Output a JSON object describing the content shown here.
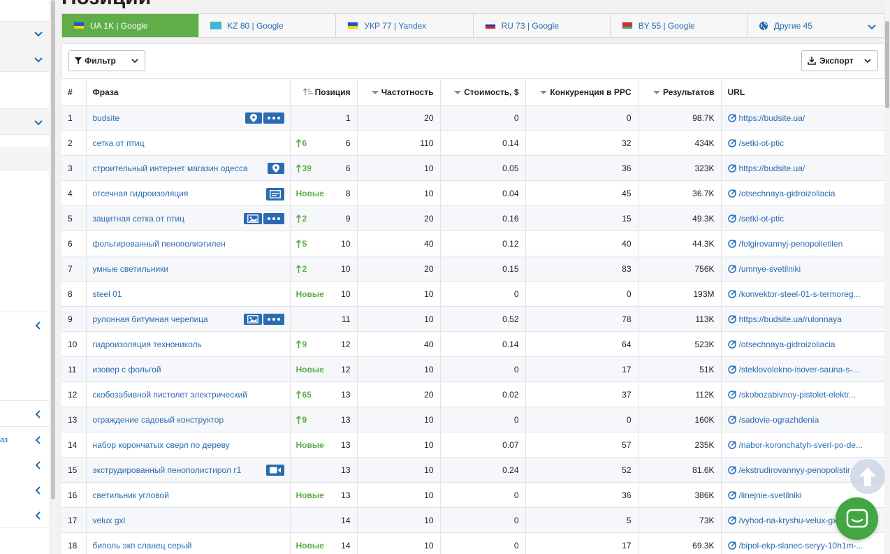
{
  "page": {
    "heading": "Позиции"
  },
  "sidebar": {
    "partial_label": "аз"
  },
  "tabs": [
    {
      "label": "UA 1K | Google",
      "flag": "ua",
      "active": true
    },
    {
      "label": "KZ 80 | Google",
      "flag": "kz",
      "active": false
    },
    {
      "label": "УКР 77 | Yandex",
      "flag": "ua",
      "active": false
    },
    {
      "label": "RU 73 | Google",
      "flag": "ru",
      "active": false
    },
    {
      "label": "BY 55 | Google",
      "flag": "by",
      "active": false
    },
    {
      "label": "Другие 45",
      "flag": "globe-icon",
      "active": false
    }
  ],
  "toolbar": {
    "filter_label": "Фильтр",
    "export_label": "Экспорт"
  },
  "table": {
    "headers": {
      "num": "#",
      "phrase": "Фраза",
      "position": "Позиция",
      "frequency": "Частотность",
      "cost": "Стоимость, $",
      "competition": "Конкуренция в PPC",
      "results": "Результатов",
      "url": "URL"
    },
    "rows": [
      {
        "n": "1",
        "phrase": "budsite",
        "icons": [
          "map-pin-icon",
          "more-icon"
        ],
        "change": "",
        "pos": "1",
        "freq": "20",
        "cost": "0",
        "comp": "0",
        "res": "98.7K",
        "url": "https://budsite.ua/"
      },
      {
        "n": "2",
        "phrase": "сетка от птиц",
        "icons": [],
        "change": "6",
        "pos": "6",
        "freq": "110",
        "cost": "0.14",
        "comp": "32",
        "res": "434K",
        "url": "/setki-ot-ptic"
      },
      {
        "n": "3",
        "phrase": "строительный интернет магазин одесса",
        "icons": [
          "map-pin-icon"
        ],
        "change": "39",
        "pos": "6",
        "freq": "10",
        "cost": "0.05",
        "comp": "36",
        "res": "323K",
        "url": "https://budsite.ua/"
      },
      {
        "n": "4",
        "phrase": "отсечная гидроизоляция",
        "icons": [
          "text-card-icon"
        ],
        "change": "Новые",
        "pos": "8",
        "freq": "10",
        "cost": "0.04",
        "comp": "45",
        "res": "36.7K",
        "url": "/otsechnaya-gidroizoliacia"
      },
      {
        "n": "5",
        "phrase": "защитная сетка от птиц",
        "icons": [
          "image-icon",
          "more-icon"
        ],
        "change": "2",
        "pos": "9",
        "freq": "20",
        "cost": "0.16",
        "comp": "15",
        "res": "49.3K",
        "url": "/setki-ot-ptic"
      },
      {
        "n": "6",
        "phrase": "фольгированный пенополиэтилен",
        "icons": [],
        "change": "5",
        "pos": "10",
        "freq": "40",
        "cost": "0.12",
        "comp": "40",
        "res": "44.3K",
        "url": "/folgirovannyj-penopolietilen"
      },
      {
        "n": "7",
        "phrase": "умные светильники",
        "icons": [],
        "change": "2",
        "pos": "10",
        "freq": "20",
        "cost": "0.15",
        "comp": "83",
        "res": "756K",
        "url": "/umnye-svetilniki"
      },
      {
        "n": "8",
        "phrase": "steel 01",
        "icons": [],
        "change": "Новые",
        "pos": "10",
        "freq": "10",
        "cost": "0",
        "comp": "0",
        "res": "193M",
        "url": "/konvektor-steel-01-s-termoreg..."
      },
      {
        "n": "9",
        "phrase": "рулонная битумная черепица",
        "icons": [
          "image-icon",
          "more-icon"
        ],
        "change": "",
        "pos": "11",
        "freq": "10",
        "cost": "0.52",
        "comp": "78",
        "res": "113K",
        "url": "https://budsite.ua/rulonnaya"
      },
      {
        "n": "10",
        "phrase": "гидроизоляция технониколь",
        "icons": [],
        "change": "9",
        "pos": "12",
        "freq": "40",
        "cost": "0.14",
        "comp": "64",
        "res": "523K",
        "url": "/otsechnaya-gidroizoliacia"
      },
      {
        "n": "11",
        "phrase": "изовер с фольгой",
        "icons": [],
        "change": "Новые",
        "pos": "12",
        "freq": "10",
        "cost": "0",
        "comp": "17",
        "res": "51K",
        "url": "/steklovolokno-isover-sauna-s-..."
      },
      {
        "n": "12",
        "phrase": "скобозабивной пистолет электрический",
        "icons": [],
        "change": "65",
        "pos": "13",
        "freq": "20",
        "cost": "0.02",
        "comp": "37",
        "res": "112K",
        "url": "/skobozabivnoy-pistolet-elektr..."
      },
      {
        "n": "13",
        "phrase": "ограждение садовый конструктор",
        "icons": [],
        "change": "9",
        "pos": "13",
        "freq": "10",
        "cost": "0",
        "comp": "0",
        "res": "160K",
        "url": "/sadovie-ograzhdenia"
      },
      {
        "n": "14",
        "phrase": "набор корончатых сверл по дереву",
        "icons": [],
        "change": "Новые",
        "pos": "13",
        "freq": "10",
        "cost": "0.07",
        "comp": "57",
        "res": "235K",
        "url": "/nabor-koronchatyh-sverl-po-de..."
      },
      {
        "n": "15",
        "phrase": "экструдированный пенополистирол г1",
        "icons": [
          "video-icon"
        ],
        "change": "",
        "pos": "13",
        "freq": "10",
        "cost": "0.24",
        "comp": "52",
        "res": "81.6K",
        "url": "/ekstrudirovannyy-penopolistir"
      },
      {
        "n": "16",
        "phrase": "светильник угловой",
        "icons": [],
        "change": "Новые",
        "pos": "13",
        "freq": "10",
        "cost": "0",
        "comp": "36",
        "res": "386K",
        "url": "/linejnie-svetilniki"
      },
      {
        "n": "17",
        "phrase": "velux gxl",
        "icons": [],
        "change": "",
        "pos": "14",
        "freq": "10",
        "cost": "0",
        "comp": "5",
        "res": "73K",
        "url": "/vyhod-na-kryshu-velux-gx"
      },
      {
        "n": "18",
        "phrase": "биполь экп сланец серый",
        "icons": [],
        "change": "Новые",
        "pos": "14",
        "freq": "10",
        "cost": "0",
        "comp": "17",
        "res": "69.3K",
        "url": "/bipol-ekp-slanec-seryy-10h1m-..."
      }
    ]
  },
  "colors": {
    "accent": "#5fae4a",
    "link": "#2a6cb0",
    "chat": "#42a742"
  }
}
